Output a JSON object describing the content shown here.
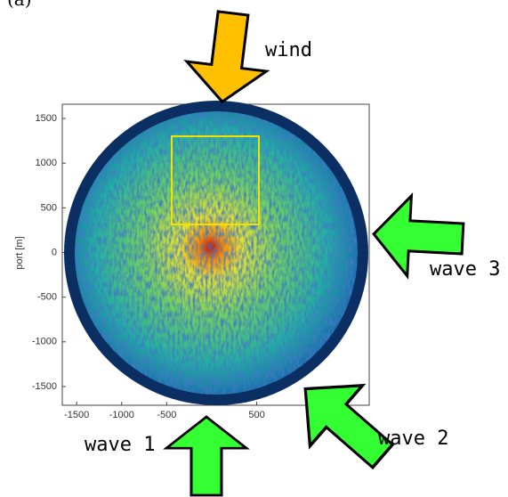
{
  "chart_data": {
    "type": "image",
    "panel_label": "(a)",
    "ylabel": "port [m]",
    "xlim": [
      -1660,
      1750
    ],
    "ylim": [
      -1710,
      1660
    ],
    "xticks": [
      -1500,
      -1000,
      -500,
      500
    ],
    "yticks": [
      1500,
      1000,
      500,
      0,
      -500,
      -1000,
      -1500
    ],
    "annotations": [
      "wind",
      "wave 1",
      "wave 2",
      "wave 3"
    ]
  }
}
